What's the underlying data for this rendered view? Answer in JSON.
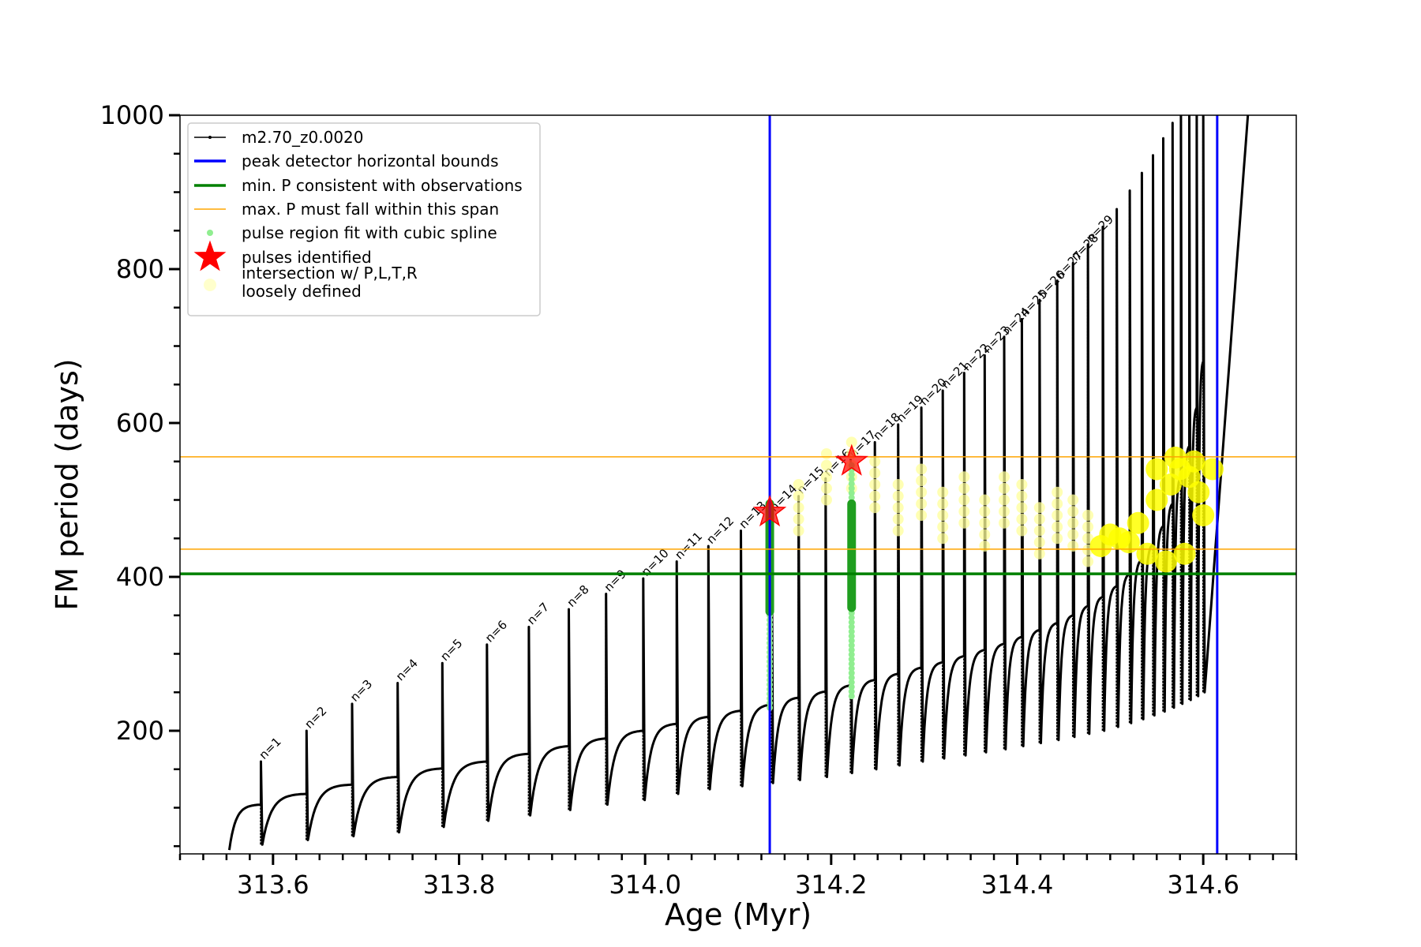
{
  "chart_data": {
    "type": "scatter",
    "xlabel": "Age (Myr)",
    "ylabel": "FM period (days)",
    "xlim": [
      313.5,
      314.7
    ],
    "ylim": [
      40,
      1000
    ],
    "x_ticks": [
      313.6,
      313.8,
      314.0,
      314.2,
      314.4,
      314.6
    ],
    "x_tick_labels": [
      "313.6",
      "313.8",
      "314.0",
      "314.2",
      "314.4",
      "314.6"
    ],
    "y_ticks": [
      200,
      400,
      600,
      800,
      1000
    ],
    "y_tick_labels": [
      "200",
      "400",
      "600",
      "800",
      "1000"
    ],
    "grid": false,
    "legend_position": "top-left",
    "legend": [
      {
        "label": "m2.70_z0.0020",
        "kind": "line-marker",
        "color": "#000000"
      },
      {
        "label": "peak detector horizontal bounds",
        "kind": "line",
        "color": "#0000ff"
      },
      {
        "label": "min. P consistent with observations",
        "kind": "line",
        "color": "#008000"
      },
      {
        "label": "max. P must fall within this span",
        "kind": "thin-line",
        "color": "#ffa500"
      },
      {
        "label": "pulse region fit with cubic spline",
        "kind": "dot",
        "color": "#90ee90"
      },
      {
        "label": "pulses identified",
        "kind": "star",
        "color": "#ff0000"
      },
      {
        "label": "intersection w/ P,L,T,R",
        "label2": "loosely defined",
        "kind": "circle",
        "color": "#ffffcc"
      }
    ],
    "vertical_lines": [
      {
        "x": 314.134,
        "color": "#0000ff"
      },
      {
        "x": 314.615,
        "color": "#0000ff"
      }
    ],
    "min_period_line": {
      "y": 404,
      "color": "#008000"
    },
    "max_period_span": [
      {
        "y": 436,
        "color": "#ffa500"
      },
      {
        "y": 556,
        "color": "#ffa500"
      }
    ],
    "pulses_identified": [
      {
        "x": 314.134,
        "y": 484
      },
      {
        "x": 314.222,
        "y": 550
      }
    ],
    "spline_regions": [
      {
        "x": 314.134,
        "y_min": 230,
        "y_max": 490
      },
      {
        "x": 314.222,
        "y_min": 245,
        "y_max": 550
      }
    ],
    "green_regions": [
      {
        "x": 314.134,
        "y_min": 355,
        "y_max": 495
      },
      {
        "x": 314.222,
        "y_min": 360,
        "y_max": 495
      }
    ],
    "pulses": [
      {
        "n": "n=1",
        "x": 313.587,
        "peak": 160,
        "base": 52,
        "plateau": 104
      },
      {
        "n": "n=2",
        "x": 313.636,
        "peak": 200,
        "base": 58,
        "plateau": 118
      },
      {
        "n": "n=3",
        "x": 313.685,
        "peak": 235,
        "base": 63,
        "plateau": 130
      },
      {
        "n": "n=4",
        "x": 313.734,
        "peak": 262,
        "base": 68,
        "plateau": 140
      },
      {
        "n": "n=5",
        "x": 313.782,
        "peak": 288,
        "base": 75,
        "plateau": 151
      },
      {
        "n": "n=6",
        "x": 313.83,
        "peak": 312,
        "base": 83,
        "plateau": 160
      },
      {
        "n": "n=7",
        "x": 313.875,
        "peak": 335,
        "base": 90,
        "plateau": 170
      },
      {
        "n": "n=8",
        "x": 313.918,
        "peak": 358,
        "base": 97,
        "plateau": 180
      },
      {
        "n": "n=9",
        "x": 313.958,
        "peak": 378,
        "base": 104,
        "plateau": 190
      },
      {
        "n": "n=10",
        "x": 313.998,
        "peak": 398,
        "base": 110,
        "plateau": 200
      },
      {
        "n": "n=11",
        "x": 314.034,
        "peak": 420,
        "base": 118,
        "plateau": 209
      },
      {
        "n": "n=12",
        "x": 314.068,
        "peak": 440,
        "base": 124,
        "plateau": 218
      },
      {
        "n": "n=13",
        "x": 314.103,
        "peak": 460,
        "base": 128,
        "plateau": 226
      },
      {
        "n": "n=14",
        "x": 314.136,
        "peak": 482,
        "base": 132,
        "plateau": 234
      },
      {
        "n": "n=15",
        "x": 314.165,
        "peak": 505,
        "base": 136,
        "plateau": 243
      },
      {
        "n": "n=16",
        "x": 314.194,
        "peak": 528,
        "base": 140,
        "plateau": 251
      },
      {
        "n": "n=17",
        "x": 314.221,
        "peak": 552,
        "base": 145,
        "plateau": 259
      },
      {
        "n": "n=18",
        "x": 314.247,
        "peak": 575,
        "base": 150,
        "plateau": 266
      },
      {
        "n": "n=19",
        "x": 314.272,
        "peak": 598,
        "base": 155,
        "plateau": 274
      },
      {
        "n": "n=20",
        "x": 314.297,
        "peak": 620,
        "base": 160,
        "plateau": 282
      },
      {
        "n": "n=21",
        "x": 314.32,
        "peak": 642,
        "base": 164,
        "plateau": 289
      },
      {
        "n": "n=22",
        "x": 314.343,
        "peak": 665,
        "base": 168,
        "plateau": 297
      },
      {
        "n": "n=23",
        "x": 314.365,
        "peak": 688,
        "base": 172,
        "plateau": 305
      },
      {
        "n": "n=24",
        "x": 314.386,
        "peak": 712,
        "base": 176,
        "plateau": 313
      },
      {
        "n": "n=25",
        "x": 314.405,
        "peak": 735,
        "base": 180,
        "plateau": 322
      },
      {
        "n": "n=26",
        "x": 314.424,
        "peak": 760,
        "base": 184,
        "plateau": 331
      },
      {
        "n": "n=27",
        "x": 314.443,
        "peak": 785,
        "base": 188,
        "plateau": 340
      },
      {
        "n": "n=28",
        "x": 314.46,
        "peak": 808,
        "base": 192,
        "plateau": 350
      },
      {
        "n": "n=29",
        "x": 314.476,
        "peak": 832,
        "base": 196,
        "plateau": 362
      },
      {
        "n": "",
        "x": 314.492,
        "peak": 855,
        "base": 200,
        "plateau": 374
      },
      {
        "n": "",
        "x": 314.507,
        "peak": 878,
        "base": 205,
        "plateau": 388
      },
      {
        "n": "",
        "x": 314.521,
        "peak": 902,
        "base": 210,
        "plateau": 404
      },
      {
        "n": "",
        "x": 314.534,
        "peak": 925,
        "base": 215,
        "plateau": 422
      },
      {
        "n": "",
        "x": 314.546,
        "peak": 948,
        "base": 220,
        "plateau": 442
      },
      {
        "n": "",
        "x": 314.557,
        "peak": 970,
        "base": 225,
        "plateau": 466
      },
      {
        "n": "",
        "x": 314.567,
        "peak": 990,
        "base": 230,
        "plateau": 495
      },
      {
        "n": "",
        "x": 314.576,
        "peak": 1000,
        "base": 235,
        "plateau": 530
      },
      {
        "n": "",
        "x": 314.585,
        "peak": 1000,
        "base": 240,
        "plateau": 570
      },
      {
        "n": "",
        "x": 314.593,
        "peak": 1000,
        "base": 245,
        "plateau": 620
      },
      {
        "n": "",
        "x": 314.6,
        "peak": 1000,
        "base": 250,
        "plateau": 680
      }
    ],
    "track_start": {
      "x": 313.553,
      "y": 45
    },
    "final_segment": {
      "x_end": 314.648,
      "y_end": 1000
    },
    "yellow_clusters": [
      {
        "x": 314.165,
        "y": 490
      },
      {
        "x": 314.195,
        "y": 530
      },
      {
        "x": 314.222,
        "y": 545
      },
      {
        "x": 314.247,
        "y": 520
      },
      {
        "x": 314.272,
        "y": 490
      },
      {
        "x": 314.297,
        "y": 510
      },
      {
        "x": 314.32,
        "y": 480
      },
      {
        "x": 314.343,
        "y": 500
      },
      {
        "x": 314.365,
        "y": 470
      },
      {
        "x": 314.386,
        "y": 500
      },
      {
        "x": 314.405,
        "y": 490
      },
      {
        "x": 314.424,
        "y": 460
      },
      {
        "x": 314.443,
        "y": 480
      },
      {
        "x": 314.46,
        "y": 470
      },
      {
        "x": 314.476,
        "y": 450
      }
    ]
  }
}
